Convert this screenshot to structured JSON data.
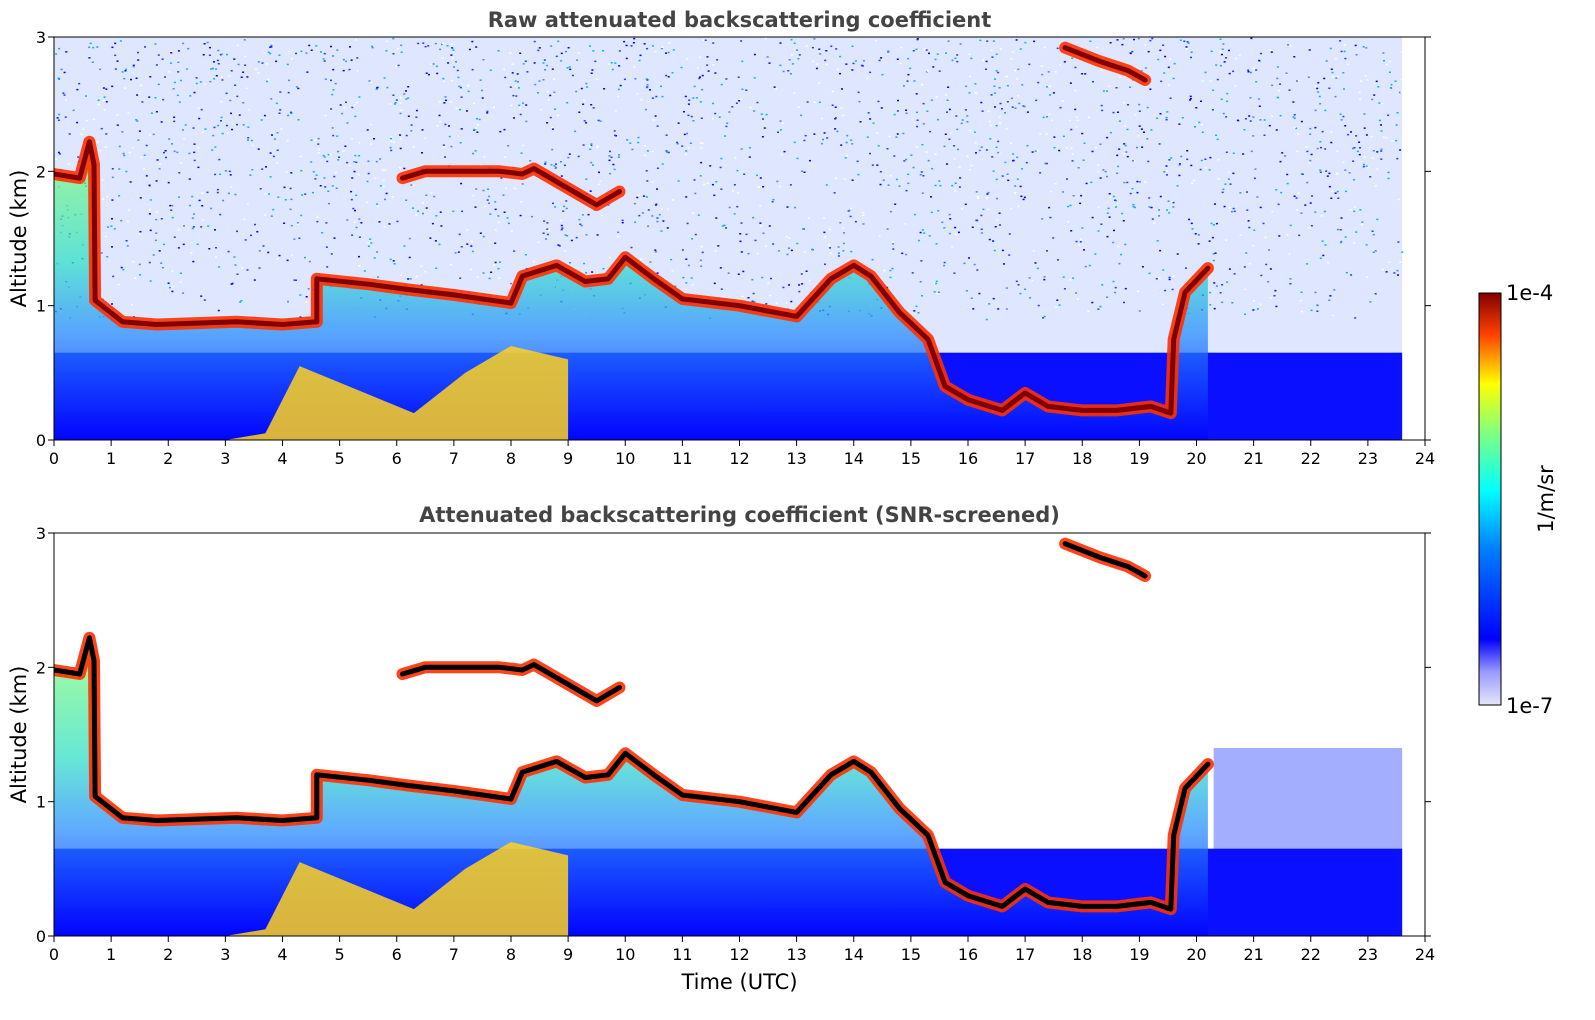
{
  "chart_data": [
    {
      "type": "heatmap",
      "title": "Raw attenuated backscattering coefficient",
      "xlabel": "",
      "ylabel": "Altitude (km)",
      "xlim": [
        0,
        24
      ],
      "ylim": [
        0,
        3
      ],
      "x_ticks": [
        "0",
        "1",
        "2",
        "3",
        "4",
        "5",
        "6",
        "7",
        "8",
        "9",
        "10",
        "11",
        "12",
        "13",
        "14",
        "15",
        "16",
        "17",
        "18",
        "19",
        "20",
        "21",
        "22",
        "23",
        "24"
      ],
      "y_ticks": [
        "0",
        "1",
        "2",
        "3"
      ],
      "data_extent_x": [
        0,
        23.6
      ],
      "screened": false,
      "layers": [
        {
          "feature": "cloud base",
          "points": [
            [
              0,
              1.98
            ],
            [
              0.45,
              1.95
            ],
            [
              0.62,
              2.22
            ],
            [
              0.7,
              2.05
            ],
            [
              0.72,
              1.04
            ],
            [
              1.2,
              0.88
            ],
            [
              1.8,
              0.86
            ],
            [
              2.5,
              0.87
            ],
            [
              3.2,
              0.88
            ],
            [
              4.0,
              0.86
            ],
            [
              4.6,
              0.88
            ],
            [
              4.6,
              1.2
            ],
            [
              5.5,
              1.16
            ],
            [
              6.2,
              1.12
            ],
            [
              7.0,
              1.08
            ],
            [
              8.0,
              1.02
            ],
            [
              8.2,
              1.22
            ],
            [
              8.8,
              1.3
            ],
            [
              9.3,
              1.18
            ],
            [
              9.7,
              1.2
            ],
            [
              10.0,
              1.36
            ],
            [
              10.5,
              1.2
            ],
            [
              11.0,
              1.05
            ],
            [
              12.0,
              1.0
            ],
            [
              13.0,
              0.92
            ],
            [
              13.6,
              1.2
            ],
            [
              14.0,
              1.3
            ],
            [
              14.3,
              1.22
            ],
            [
              14.8,
              0.95
            ],
            [
              15.3,
              0.75
            ],
            [
              15.6,
              0.4
            ],
            [
              16.0,
              0.3
            ],
            [
              16.6,
              0.22
            ],
            [
              17.0,
              0.35
            ],
            [
              17.4,
              0.25
            ],
            [
              18.0,
              0.22
            ],
            [
              18.6,
              0.22
            ],
            [
              19.2,
              0.25
            ],
            [
              19.55,
              0.2
            ],
            [
              19.6,
              0.75
            ],
            [
              19.8,
              1.1
            ],
            [
              20.2,
              1.28
            ]
          ]
        },
        {
          "feature": "upper cloud",
          "points": [
            [
              17.7,
              2.92
            ],
            [
              18.3,
              2.82
            ],
            [
              18.8,
              2.75
            ],
            [
              19.1,
              2.68
            ]
          ]
        },
        {
          "feature": "elevated layer",
          "points": [
            [
              6.1,
              1.95
            ],
            [
              6.5,
              2.0
            ],
            [
              7.8,
              2.0
            ],
            [
              8.2,
              1.98
            ],
            [
              8.4,
              2.02
            ],
            [
              9.5,
              1.75
            ],
            [
              9.9,
              1.85
            ]
          ]
        },
        {
          "feature": "aerosol plume",
          "points": [
            [
              3.0,
              0.0
            ],
            [
              3.7,
              0.05
            ],
            [
              4.3,
              0.55
            ],
            [
              6.3,
              0.2
            ],
            [
              7.2,
              0.5
            ],
            [
              8.0,
              0.7
            ],
            [
              9.0,
              0.6
            ]
          ]
        }
      ]
    },
    {
      "type": "heatmap",
      "title": "Attenuated backscattering coefficient (SNR-screened)",
      "xlabel": "Time (UTC)",
      "ylabel": "Altitude (km)",
      "xlim": [
        0,
        24
      ],
      "ylim": [
        0,
        3
      ],
      "x_ticks": [
        "0",
        "1",
        "2",
        "3",
        "4",
        "5",
        "6",
        "7",
        "8",
        "9",
        "10",
        "11",
        "12",
        "13",
        "14",
        "15",
        "16",
        "17",
        "18",
        "19",
        "20",
        "21",
        "22",
        "23",
        "24"
      ],
      "y_ticks": [
        "0",
        "1",
        "2",
        "3"
      ],
      "data_extent_x": [
        0,
        23.6
      ],
      "screened": true,
      "layers": [
        {
          "feature": "cloud base",
          "points": [
            [
              0,
              1.98
            ],
            [
              0.45,
              1.95
            ],
            [
              0.62,
              2.22
            ],
            [
              0.7,
              2.05
            ],
            [
              0.72,
              1.04
            ],
            [
              1.2,
              0.88
            ],
            [
              1.8,
              0.86
            ],
            [
              2.5,
              0.87
            ],
            [
              3.2,
              0.88
            ],
            [
              4.0,
              0.86
            ],
            [
              4.6,
              0.88
            ],
            [
              4.6,
              1.2
            ],
            [
              5.5,
              1.16
            ],
            [
              6.2,
              1.12
            ],
            [
              7.0,
              1.08
            ],
            [
              8.0,
              1.02
            ],
            [
              8.2,
              1.22
            ],
            [
              8.8,
              1.3
            ],
            [
              9.3,
              1.18
            ],
            [
              9.7,
              1.2
            ],
            [
              10.0,
              1.36
            ],
            [
              10.5,
              1.2
            ],
            [
              11.0,
              1.05
            ],
            [
              12.0,
              1.0
            ],
            [
              13.0,
              0.92
            ],
            [
              13.6,
              1.2
            ],
            [
              14.0,
              1.3
            ],
            [
              14.3,
              1.22
            ],
            [
              14.8,
              0.95
            ],
            [
              15.3,
              0.75
            ],
            [
              15.6,
              0.4
            ],
            [
              16.0,
              0.3
            ],
            [
              16.6,
              0.22
            ],
            [
              17.0,
              0.35
            ],
            [
              17.4,
              0.25
            ],
            [
              18.0,
              0.22
            ],
            [
              18.6,
              0.22
            ],
            [
              19.2,
              0.25
            ],
            [
              19.55,
              0.2
            ],
            [
              19.6,
              0.75
            ],
            [
              19.8,
              1.1
            ],
            [
              20.2,
              1.28
            ]
          ]
        },
        {
          "feature": "upper cloud",
          "points": [
            [
              17.7,
              2.92
            ],
            [
              18.3,
              2.82
            ],
            [
              18.8,
              2.75
            ],
            [
              19.1,
              2.68
            ]
          ]
        },
        {
          "feature": "elevated layer",
          "points": [
            [
              6.1,
              1.95
            ],
            [
              6.5,
              2.0
            ],
            [
              7.8,
              2.0
            ],
            [
              8.2,
              1.98
            ],
            [
              8.4,
              2.02
            ],
            [
              9.5,
              1.75
            ],
            [
              9.9,
              1.85
            ]
          ]
        },
        {
          "feature": "aerosol plume",
          "points": [
            [
              3.0,
              0.0
            ],
            [
              3.7,
              0.05
            ],
            [
              4.3,
              0.55
            ],
            [
              6.3,
              0.2
            ],
            [
              7.2,
              0.5
            ],
            [
              8.0,
              0.7
            ],
            [
              9.0,
              0.6
            ]
          ]
        }
      ]
    }
  ],
  "colorbar": {
    "label": "1/m/sr",
    "max_label": "1e-4",
    "min_label": "1e-7",
    "colormap": "jet",
    "colors": [
      "#e6e6fa",
      "#0000ff",
      "#00ffff",
      "#ffff00",
      "#ff0000",
      "#800000"
    ],
    "scale": "log"
  },
  "colors": {
    "low": "#0000ff",
    "high": "#800000",
    "saturated": "#000000",
    "title_text": "#444444"
  }
}
